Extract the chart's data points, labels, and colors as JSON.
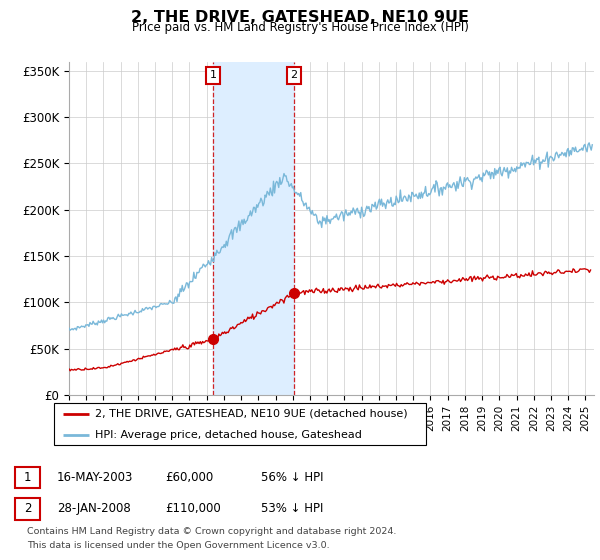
{
  "title": "2, THE DRIVE, GATESHEAD, NE10 9UE",
  "subtitle": "Price paid vs. HM Land Registry's House Price Index (HPI)",
  "ylabel_ticks": [
    "£0",
    "£50K",
    "£100K",
    "£150K",
    "£200K",
    "£250K",
    "£300K",
    "£350K"
  ],
  "ytick_values": [
    0,
    50000,
    100000,
    150000,
    200000,
    250000,
    300000,
    350000
  ],
  "ylim": [
    0,
    360000
  ],
  "xlim_start": 1995,
  "xlim_end": 2025.5,
  "sale1_year": 2003.37,
  "sale1_price": 60000,
  "sale2_year": 2008.07,
  "sale2_price": 110000,
  "legend_line1": "2, THE DRIVE, GATESHEAD, NE10 9UE (detached house)",
  "legend_line2": "HPI: Average price, detached house, Gateshead",
  "table_row1_label": "1",
  "table_row1_date": "16-MAY-2003",
  "table_row1_price": "£60,000",
  "table_row1_hpi": "56% ↓ HPI",
  "table_row2_label": "2",
  "table_row2_date": "28-JAN-2008",
  "table_row2_price": "£110,000",
  "table_row2_hpi": "53% ↓ HPI",
  "footer_line1": "Contains HM Land Registry data © Crown copyright and database right 2024.",
  "footer_line2": "This data is licensed under the Open Government Licence v3.0.",
  "hpi_color": "#7ab8d9",
  "price_color": "#cc0000",
  "shade_color": "#ddeeff",
  "vline_color": "#cc0000",
  "grid_color": "#cccccc"
}
